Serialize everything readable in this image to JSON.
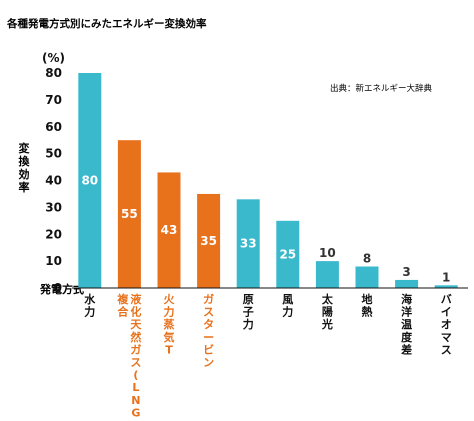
{
  "chart_data": {
    "type": "bar",
    "title": "各種発電方式別にみたエネルギー変換効率",
    "ylabel": "変換効率",
    "yunit": "(%)",
    "xlabel": "発電方式",
    "source": "出典：新エネルギー大辞典",
    "ylim": [
      0,
      80
    ],
    "yticks": [
      0,
      10,
      20,
      30,
      40,
      50,
      60,
      70,
      80
    ],
    "grid": false,
    "categories": [
      "水力",
      "複合\n液化天然ガス(LNG)",
      "火力蒸気T",
      "ガスタービン",
      "原子力",
      "風力",
      "太陽光",
      "地熱",
      "海洋温度差",
      "バイオマス"
    ],
    "category_lines": [
      [
        "水力"
      ],
      [
        "複合",
        "液化天然ガス(LNG)"
      ],
      [
        "火力蒸気T"
      ],
      [
        "ガスタービン"
      ],
      [
        "原子力"
      ],
      [
        "風力"
      ],
      [
        "太陽光"
      ],
      [
        "地熱"
      ],
      [
        "海洋温度差"
      ],
      [
        "バイオマス"
      ]
    ],
    "values": [
      80,
      55,
      43,
      35,
      33,
      25,
      10,
      8,
      3,
      1
    ],
    "bar_colors": [
      "#3ab8cc",
      "#e8711c",
      "#e8711c",
      "#e8711c",
      "#3ab8cc",
      "#3ab8cc",
      "#3ab8cc",
      "#3ab8cc",
      "#3ab8cc",
      "#3ab8cc"
    ],
    "label_colors": [
      "#111111",
      "#e8711c",
      "#e8711c",
      "#e8711c",
      "#111111",
      "#111111",
      "#111111",
      "#111111",
      "#111111",
      "#111111"
    ]
  }
}
